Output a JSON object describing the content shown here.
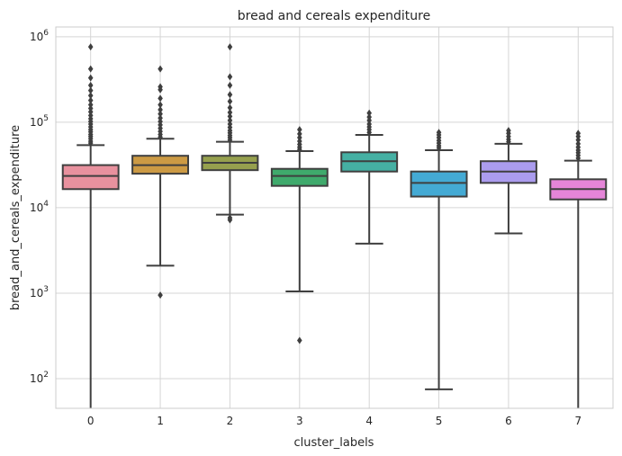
{
  "chart_data": {
    "type": "boxplot",
    "title": "bread and cereals expenditure",
    "xlabel": "cluster_labels",
    "ylabel": "bread_and_cereals_expenditure",
    "yscale": "log",
    "ylim": [
      45,
      1300000
    ],
    "grid": true,
    "categories": [
      "0",
      "1",
      "2",
      "3",
      "4",
      "5",
      "6",
      "7"
    ],
    "colors": [
      "#E8919E",
      "#CC9A44",
      "#96A04E",
      "#3FAA6C",
      "#45B0A3",
      "#44AAD4",
      "#AB9CEE",
      "#E585D8"
    ],
    "y_ticks": [
      {
        "value": 100,
        "base": "10",
        "exp": "2"
      },
      {
        "value": 1000,
        "base": "10",
        "exp": "3"
      },
      {
        "value": 10000,
        "base": "10",
        "exp": "4"
      },
      {
        "value": 100000,
        "base": "10",
        "exp": "5"
      },
      {
        "value": 1000000,
        "base": "10",
        "exp": "6"
      }
    ],
    "boxes": [
      {
        "category": "0",
        "whisker_low": 45,
        "q1": 16500,
        "median": 23500,
        "q3": 31500,
        "whisker_high": 54000,
        "outliers": [
          57000,
          60000,
          64000,
          68000,
          72000,
          77000,
          82000,
          88000,
          95000,
          102000,
          110000,
          120000,
          132000,
          145000,
          160000,
          180000,
          205000,
          235000,
          270000,
          330000,
          420000,
          760000
        ]
      },
      {
        "category": "1",
        "whisker_low": 2100,
        "q1": 25000,
        "median": 31500,
        "q3": 40500,
        "whisker_high": 64000,
        "outliers": [
          950,
          67000,
          72000,
          78000,
          85000,
          93000,
          102000,
          112000,
          125000,
          140000,
          160000,
          190000,
          240000,
          260000,
          420000
        ]
      },
      {
        "category": "2",
        "whisker_low": 8300,
        "q1": 27500,
        "median": 33500,
        "q3": 40500,
        "whisker_high": 59000,
        "outliers": [
          7200,
          7600,
          62000,
          66000,
          70000,
          75000,
          80000,
          87000,
          95000,
          105000,
          117000,
          130000,
          148000,
          175000,
          210000,
          270000,
          340000,
          760000
        ]
      },
      {
        "category": "3",
        "whisker_low": 1050,
        "q1": 18000,
        "median": 23500,
        "q3": 28500,
        "whisker_high": 46000,
        "outliers": [
          280,
          48000,
          51000,
          55000,
          60000,
          66000,
          73000,
          82000
        ]
      },
      {
        "category": "4",
        "whisker_low": 3800,
        "q1": 26500,
        "median": 35000,
        "q3": 44500,
        "whisker_high": 71000,
        "outliers": [
          76000,
          82000,
          88000,
          95000,
          105000,
          115000,
          128000
        ]
      },
      {
        "category": "5",
        "whisker_low": 75,
        "q1": 13500,
        "median": 19500,
        "q3": 26500,
        "whisker_high": 47000,
        "outliers": [
          50000,
          53000,
          57000,
          61000,
          66000,
          71000,
          76000
        ]
      },
      {
        "category": "6",
        "whisker_low": 5000,
        "q1": 19500,
        "median": 26500,
        "q3": 35000,
        "whisker_high": 56000,
        "outliers": [
          59000,
          63000,
          68000,
          74000,
          80000
        ]
      },
      {
        "category": "7",
        "whisker_low": 45,
        "q1": 12500,
        "median": 16500,
        "q3": 21500,
        "whisker_high": 35500,
        "outliers": [
          38000,
          41000,
          44000,
          47000,
          51000,
          56000,
          62000,
          68000,
          74000
        ]
      }
    ]
  }
}
